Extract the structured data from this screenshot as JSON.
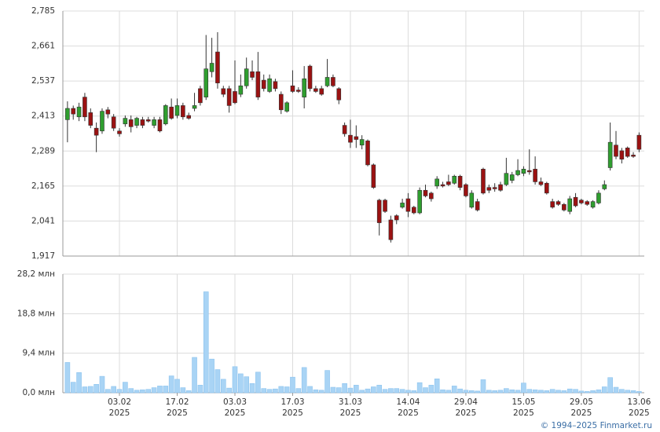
{
  "chart_data": [
    {
      "type": "candlestick",
      "x": [
        0,
        1,
        2,
        3,
        4,
        5,
        6,
        7,
        8,
        9,
        10,
        11,
        12,
        13,
        14,
        15,
        16,
        17,
        18,
        19,
        20,
        21,
        22,
        23,
        24,
        25,
        26,
        27,
        28,
        29,
        30,
        31,
        32,
        33,
        34,
        35,
        36,
        37,
        38,
        39,
        40,
        41,
        42,
        43,
        44,
        45,
        46,
        47,
        48,
        49,
        50,
        51,
        52,
        53,
        54,
        55,
        56,
        57,
        58,
        59,
        60,
        61,
        62,
        63,
        64,
        65,
        66,
        67,
        68,
        69,
        70,
        71,
        72,
        73,
        74,
        75,
        76,
        77,
        78,
        79,
        80,
        81,
        82,
        83,
        84,
        85,
        86,
        87,
        88,
        89,
        90,
        91,
        92,
        93,
        94,
        95,
        96,
        97,
        98,
        99
      ],
      "open": [
        2400,
        2440,
        2410,
        2480,
        2425,
        2370,
        2360,
        2435,
        2410,
        2360,
        2385,
        2400,
        2380,
        2400,
        2400,
        2380,
        2400,
        2385,
        2445,
        2415,
        2450,
        2415,
        2440,
        2510,
        2480,
        2570,
        2640,
        2510,
        2510,
        2500,
        2490,
        2520,
        2570,
        2570,
        2540,
        2500,
        2535,
        2490,
        2430,
        2520,
        2505,
        2480,
        2590,
        2510,
        2510,
        2520,
        2550,
        2510,
        2380,
        2345,
        2340,
        2310,
        2325,
        2240,
        2115,
        2115,
        2045,
        2060,
        2090,
        2120,
        2090,
        2070,
        2150,
        2140,
        2165,
        2170,
        2180,
        2175,
        2200,
        2170,
        2090,
        2110,
        2225,
        2160,
        2160,
        2170,
        2170,
        2185,
        2205,
        2210,
        2220,
        2225,
        2180,
        2175,
        2110,
        2110,
        2100,
        2075,
        2125,
        2115,
        2110,
        2090,
        2105,
        2155,
        2230,
        2310,
        2290,
        2300,
        2275,
        2345
      ],
      "high": [
        2465,
        2450,
        2460,
        2495,
        2440,
        2390,
        2440,
        2445,
        2420,
        2370,
        2415,
        2415,
        2410,
        2410,
        2410,
        2410,
        2410,
        2455,
        2475,
        2475,
        2460,
        2425,
        2495,
        2520,
        2700,
        2690,
        2710,
        2520,
        2520,
        2610,
        2560,
        2620,
        2610,
        2640,
        2560,
        2560,
        2545,
        2500,
        2465,
        2575,
        2515,
        2590,
        2595,
        2520,
        2520,
        2615,
        2560,
        2515,
        2390,
        2400,
        2380,
        2345,
        2330,
        2245,
        2120,
        2120,
        2060,
        2065,
        2120,
        2140,
        2095,
        2160,
        2170,
        2145,
        2200,
        2180,
        2205,
        2205,
        2205,
        2175,
        2150,
        2120,
        2230,
        2170,
        2175,
        2180,
        2265,
        2215,
        2260,
        2235,
        2295,
        2270,
        2195,
        2180,
        2120,
        2115,
        2105,
        2130,
        2140,
        2120,
        2115,
        2115,
        2150,
        2185,
        2390,
        2360,
        2300,
        2305,
        2285,
        2355
      ],
      "low": [
        2320,
        2400,
        2395,
        2395,
        2370,
        2285,
        2350,
        2405,
        2360,
        2340,
        2375,
        2355,
        2370,
        2370,
        2390,
        2370,
        2355,
        2380,
        2400,
        2405,
        2400,
        2400,
        2430,
        2450,
        2470,
        2550,
        2510,
        2480,
        2425,
        2455,
        2480,
        2510,
        2540,
        2470,
        2500,
        2495,
        2500,
        2420,
        2425,
        2495,
        2495,
        2440,
        2500,
        2495,
        2485,
        2515,
        2515,
        2455,
        2340,
        2300,
        2300,
        2295,
        2235,
        2155,
        1990,
        2070,
        1965,
        2030,
        2085,
        2055,
        2065,
        2065,
        2125,
        2110,
        2155,
        2160,
        2165,
        2170,
        2150,
        2125,
        2085,
        2075,
        2135,
        2140,
        2145,
        2145,
        2165,
        2175,
        2200,
        2200,
        2205,
        2170,
        2165,
        2135,
        2085,
        2095,
        2075,
        2065,
        2090,
        2100,
        2095,
        2085,
        2100,
        2150,
        2220,
        2260,
        2245,
        2265,
        2265,
        2285
      ],
      "close": [
        2440,
        2420,
        2445,
        2410,
        2380,
        2345,
        2430,
        2420,
        2370,
        2350,
        2405,
        2375,
        2405,
        2380,
        2395,
        2400,
        2360,
        2450,
        2405,
        2450,
        2410,
        2405,
        2450,
        2460,
        2580,
        2600,
        2530,
        2490,
        2450,
        2460,
        2520,
        2580,
        2550,
        2480,
        2510,
        2545,
        2510,
        2435,
        2460,
        2500,
        2500,
        2545,
        2510,
        2500,
        2490,
        2550,
        2520,
        2470,
        2350,
        2320,
        2330,
        2330,
        2240,
        2160,
        2035,
        2075,
        1975,
        2045,
        2105,
        2075,
        2070,
        2150,
        2130,
        2120,
        2190,
        2165,
        2170,
        2200,
        2160,
        2130,
        2140,
        2080,
        2140,
        2150,
        2155,
        2150,
        2210,
        2205,
        2220,
        2225,
        2215,
        2180,
        2170,
        2140,
        2090,
        2100,
        2080,
        2120,
        2095,
        2105,
        2100,
        2110,
        2140,
        2170,
        2320,
        2270,
        2260,
        2270,
        2270,
        2295
      ],
      "up_color": "#2f9e2f",
      "down_color": "#9b1212",
      "xlim": [
        -0.8,
        99.9
      ],
      "ylim": [
        1917,
        2785
      ],
      "yticks": [
        {
          "value": 1917,
          "label": "1,917"
        },
        {
          "value": 2041,
          "label": "2,041"
        },
        {
          "value": 2165,
          "label": "2,165"
        },
        {
          "value": 2289,
          "label": "2,289"
        },
        {
          "value": 2413,
          "label": "2,413"
        },
        {
          "value": 2537,
          "label": "2,537"
        },
        {
          "value": 2661,
          "label": "2,661"
        },
        {
          "value": 2785,
          "label": "2,785"
        }
      ],
      "grid": true
    },
    {
      "type": "bar",
      "x": [
        0,
        1,
        2,
        3,
        4,
        5,
        6,
        7,
        8,
        9,
        10,
        11,
        12,
        13,
        14,
        15,
        16,
        17,
        18,
        19,
        20,
        21,
        22,
        23,
        24,
        25,
        26,
        27,
        28,
        29,
        30,
        31,
        32,
        33,
        34,
        35,
        36,
        37,
        38,
        39,
        40,
        41,
        42,
        43,
        44,
        45,
        46,
        47,
        48,
        49,
        50,
        51,
        52,
        53,
        54,
        55,
        56,
        57,
        58,
        59,
        60,
        61,
        62,
        63,
        64,
        65,
        66,
        67,
        68,
        69,
        70,
        71,
        72,
        73,
        74,
        75,
        76,
        77,
        78,
        79,
        80,
        81,
        82,
        83,
        84,
        85,
        86,
        87,
        88,
        89,
        90,
        91,
        92,
        93,
        94,
        95,
        96,
        97,
        98,
        99
      ],
      "values": [
        7.2,
        2.5,
        4.8,
        1.4,
        1.5,
        2.0,
        3.9,
        0.8,
        1.5,
        0.8,
        2.5,
        1.0,
        0.6,
        0.7,
        0.8,
        1.2,
        1.6,
        1.6,
        4.0,
        3.2,
        1.2,
        0.5,
        8.4,
        1.8,
        24.0,
        8.0,
        5.5,
        3.2,
        1.1,
        6.2,
        4.5,
        3.8,
        2.2,
        4.9,
        1.0,
        0.8,
        0.9,
        1.5,
        1.4,
        3.7,
        1.0,
        6.0,
        1.5,
        0.7,
        0.6,
        5.3,
        1.3,
        1.2,
        2.2,
        1.1,
        1.8,
        0.6,
        0.9,
        1.4,
        1.8,
        0.8,
        1.0,
        1.0,
        0.8,
        0.6,
        0.5,
        2.4,
        1.2,
        1.8,
        3.3,
        0.7,
        0.6,
        1.6,
        0.9,
        0.6,
        0.5,
        0.4,
        3.1,
        0.6,
        0.5,
        0.6,
        1.0,
        0.7,
        0.6,
        2.3,
        0.8,
        0.7,
        0.6,
        0.5,
        0.8,
        0.6,
        0.5,
        0.9,
        0.8,
        0.4,
        0.3,
        0.5,
        0.7,
        1.4,
        3.6,
        1.3,
        0.8,
        0.6,
        0.5,
        0.3
      ],
      "color": "#a9d4f5",
      "xlim": [
        -0.8,
        99.9
      ],
      "ylim": [
        0,
        28.2
      ],
      "yticks": [
        {
          "value": 0,
          "label": "0,0 млн"
        },
        {
          "value": 9.4,
          "label": "9,4 млн"
        },
        {
          "value": 18.8,
          "label": "18,8 млн"
        },
        {
          "value": 28.2,
          "label": "28,2 млн"
        }
      ],
      "xticks": [
        {
          "value": 9,
          "label": "03.02",
          "year": "2025"
        },
        {
          "value": 19,
          "label": "17.02",
          "year": "2025"
        },
        {
          "value": 29,
          "label": "03.03",
          "year": "2025"
        },
        {
          "value": 39,
          "label": "17.03",
          "year": "2025"
        },
        {
          "value": 49,
          "label": "31.03",
          "year": "2025"
        },
        {
          "value": 59,
          "label": "14.04",
          "year": "2025"
        },
        {
          "value": 69,
          "label": "29.04",
          "year": "2025"
        },
        {
          "value": 79,
          "label": "15.05",
          "year": "2025"
        },
        {
          "value": 89,
          "label": "29.05",
          "year": "2025"
        },
        {
          "value": 99,
          "label": "13.06",
          "year": "2025"
        }
      ],
      "grid": true
    }
  ],
  "footer": "© 1994–2025 Finmarket.ru"
}
